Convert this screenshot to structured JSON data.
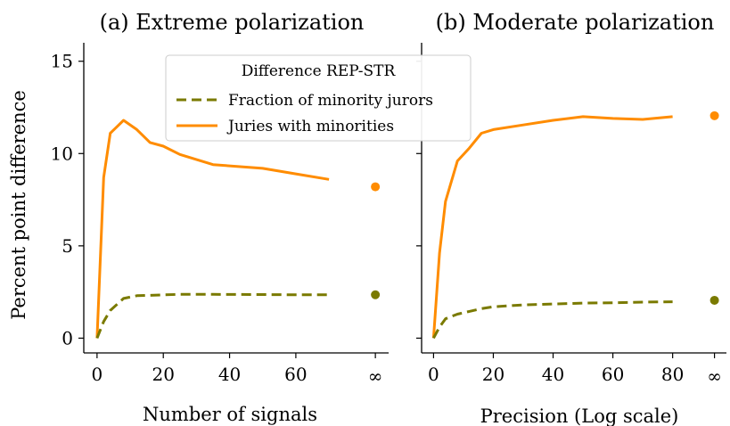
{
  "colors": {
    "juries": "#ff8c00",
    "fraction": "#7a7a00",
    "axis": "#000000"
  },
  "legend": {
    "title": "Difference REP-STR",
    "entries": [
      {
        "label": "Fraction of minority jurors",
        "style": "dashed",
        "color": "#7a7a00"
      },
      {
        "label": "Juries with minorities",
        "style": "solid",
        "color": "#ff8c00"
      }
    ]
  },
  "shared": {
    "ylabel": "Percent point difference"
  },
  "chart_data": [
    {
      "type": "line",
      "title": "(a) Extreme polarization",
      "xlabel": "Number of signals",
      "ylabel": "Percent point difference",
      "xlim": [
        -4,
        88
      ],
      "ylim": [
        -0.8,
        16
      ],
      "xticks": [
        0,
        20,
        40,
        60
      ],
      "xtick_labels": [
        "0",
        "20",
        "40",
        "60"
      ],
      "yticks": [
        0,
        5,
        10,
        15
      ],
      "ytick_labels": [
        "0",
        "5",
        "10",
        "15"
      ],
      "infinity_x": 84,
      "infinity_label": "∞",
      "legend_placement": "upper-right",
      "series": [
        {
          "name": "Juries with minorities",
          "style": "solid",
          "x": [
            0,
            2,
            4,
            8,
            12,
            16,
            20,
            25,
            35,
            50,
            60,
            70
          ],
          "y": [
            0,
            8.7,
            11.1,
            11.8,
            11.3,
            10.6,
            10.4,
            9.95,
            9.4,
            9.2,
            8.9,
            8.6
          ],
          "infinity_value": 8.2
        },
        {
          "name": "Fraction of minority jurors",
          "style": "dashed",
          "x": [
            0,
            2,
            4,
            8,
            12,
            16,
            20,
            25,
            35,
            50,
            60,
            70
          ],
          "y": [
            0,
            0.9,
            1.5,
            2.15,
            2.3,
            2.32,
            2.35,
            2.37,
            2.37,
            2.36,
            2.35,
            2.35
          ],
          "infinity_value": 2.35
        }
      ]
    },
    {
      "type": "line",
      "title": "(b) Moderate polarization",
      "xlabel": "Precision (Log scale)",
      "ylabel": "",
      "xlim": [
        -4,
        98
      ],
      "ylim": [
        -0.8,
        16
      ],
      "xticks": [
        0,
        20,
        40,
        60,
        80
      ],
      "xtick_labels": [
        "0",
        "20",
        "40",
        "60",
        "80"
      ],
      "yticks": [
        0,
        5,
        10,
        15
      ],
      "ytick_labels": [
        "",
        "",
        "",
        ""
      ],
      "infinity_x": 94,
      "infinity_label": "∞",
      "series": [
        {
          "name": "Juries with minorities",
          "style": "solid",
          "x": [
            0,
            2,
            4,
            8,
            12,
            16,
            20,
            30,
            40,
            50,
            60,
            70,
            80
          ],
          "y": [
            0,
            4.6,
            7.4,
            9.6,
            10.3,
            11.1,
            11.3,
            11.55,
            11.8,
            12.0,
            11.9,
            11.85,
            12.0
          ],
          "infinity_value": 12.05
        },
        {
          "name": "Fraction of minority jurors",
          "style": "dashed",
          "x": [
            0,
            2,
            4,
            8,
            12,
            16,
            20,
            30,
            40,
            50,
            60,
            70,
            80
          ],
          "y": [
            0,
            0.6,
            1.05,
            1.3,
            1.45,
            1.6,
            1.7,
            1.8,
            1.85,
            1.9,
            1.92,
            1.95,
            1.97
          ],
          "infinity_value": 2.05
        }
      ]
    }
  ]
}
